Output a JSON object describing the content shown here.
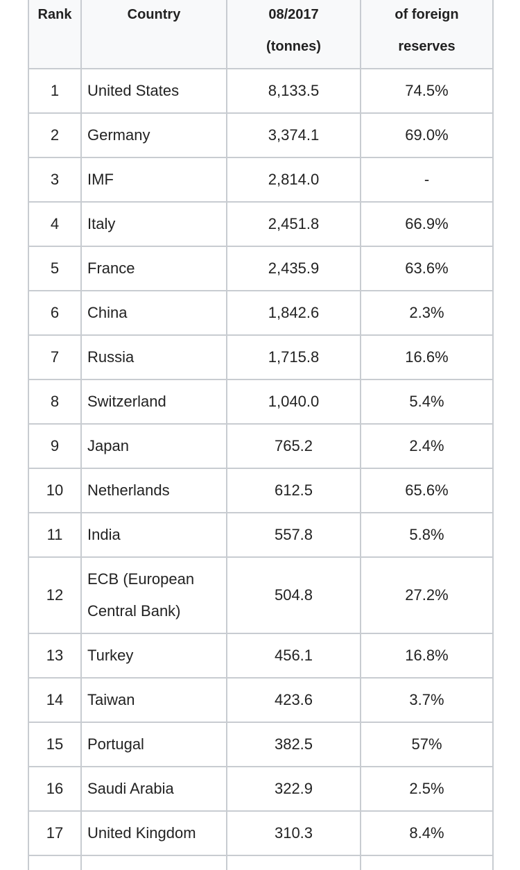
{
  "table": {
    "headers": {
      "rank": "Rank",
      "country": "Country",
      "tonnes_line1": "08/2017",
      "tonnes_line2": "(tonnes)",
      "pct_line1": "of foreign",
      "pct_line2": "reserves"
    },
    "rows": [
      {
        "rank": "1",
        "country": "United States",
        "tonnes": "8,133.5",
        "pct": "74.5%"
      },
      {
        "rank": "2",
        "country": "Germany",
        "tonnes": "3,374.1",
        "pct": "69.0%"
      },
      {
        "rank": "3",
        "country": "IMF",
        "tonnes": "2,814.0",
        "pct": "-"
      },
      {
        "rank": "4",
        "country": "Italy",
        "tonnes": "2,451.8",
        "pct": "66.9%"
      },
      {
        "rank": "5",
        "country": "France",
        "tonnes": "2,435.9",
        "pct": "63.6%"
      },
      {
        "rank": "6",
        "country": "China",
        "tonnes": "1,842.6",
        "pct": "2.3%"
      },
      {
        "rank": "7",
        "country": "Russia",
        "tonnes": "1,715.8",
        "pct": "16.6%"
      },
      {
        "rank": "8",
        "country": "Switzerland",
        "tonnes": "1,040.0",
        "pct": "5.4%"
      },
      {
        "rank": "9",
        "country": "Japan",
        "tonnes": "765.2",
        "pct": "2.4%"
      },
      {
        "rank": "10",
        "country": "Netherlands",
        "tonnes": "612.5",
        "pct": "65.6%"
      },
      {
        "rank": "11",
        "country": "India",
        "tonnes": "557.8",
        "pct": "5.8%"
      },
      {
        "rank": "12",
        "country": "ECB (European Central Bank)",
        "tonnes": "504.8",
        "pct": "27.2%"
      },
      {
        "rank": "13",
        "country": "Turkey",
        "tonnes": "456.1",
        "pct": "16.8%"
      },
      {
        "rank": "14",
        "country": "Taiwan",
        "tonnes": "423.6",
        "pct": "3.7%"
      },
      {
        "rank": "15",
        "country": "Portugal",
        "tonnes": "382.5",
        "pct": "57%"
      },
      {
        "rank": "16",
        "country": "Saudi Arabia",
        "tonnes": "322.9",
        "pct": "2.5%"
      },
      {
        "rank": "17",
        "country": "United Kingdom",
        "tonnes": "310.3",
        "pct": "8.4%"
      }
    ]
  }
}
